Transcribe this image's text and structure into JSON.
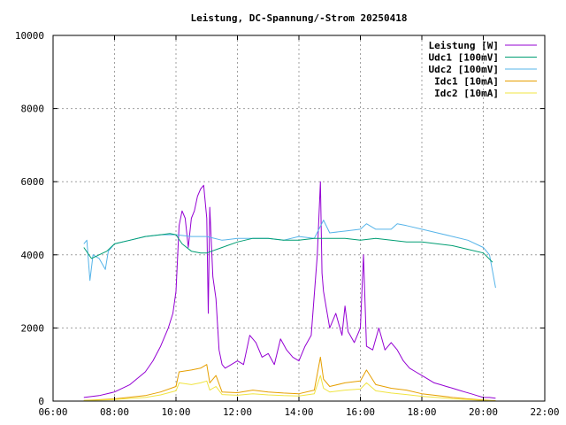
{
  "chart_data": {
    "type": "line",
    "title": "Leistung, DC-Spannung/-Strom 20250418",
    "xlabel": "",
    "ylabel": "",
    "x_unit": "hour",
    "xlim": [
      6,
      22
    ],
    "ylim": [
      0,
      10000
    ],
    "x_ticks": [
      6,
      8,
      10,
      12,
      14,
      16,
      18,
      20,
      22
    ],
    "x_tick_labels": [
      "06:00",
      "08:00",
      "10:00",
      "12:00",
      "14:00",
      "16:00",
      "18:00",
      "20:00",
      "22:00"
    ],
    "y_ticks": [
      0,
      2000,
      4000,
      6000,
      8000,
      10000
    ],
    "y_tick_labels": [
      "0",
      "2000",
      "4000",
      "6000",
      "8000",
      "10000"
    ],
    "grid": true,
    "legend_position": "top-right",
    "series": [
      {
        "name": "Leistung [W]",
        "color": "#9400d3",
        "x": [
          7.0,
          7.5,
          8.0,
          8.5,
          9.0,
          9.25,
          9.5,
          9.75,
          9.9,
          10.0,
          10.1,
          10.2,
          10.3,
          10.4,
          10.5,
          10.6,
          10.7,
          10.8,
          10.9,
          11.0,
          11.05,
          11.1,
          11.2,
          11.3,
          11.4,
          11.5,
          11.6,
          11.8,
          12.0,
          12.2,
          12.4,
          12.5,
          12.6,
          12.8,
          13.0,
          13.2,
          13.4,
          13.6,
          13.8,
          14.0,
          14.2,
          14.4,
          14.6,
          14.7,
          14.75,
          14.8,
          14.9,
          15.0,
          15.2,
          15.4,
          15.5,
          15.6,
          15.8,
          16.0,
          16.1,
          16.2,
          16.4,
          16.6,
          16.8,
          17.0,
          17.2,
          17.4,
          17.6,
          17.8,
          18.0,
          18.2,
          18.4,
          18.6,
          18.8,
          19.0,
          19.2,
          19.4,
          19.6,
          19.8,
          20.0,
          20.2,
          20.4
        ],
        "values": [
          100,
          150,
          250,
          450,
          800,
          1100,
          1500,
          2000,
          2400,
          3000,
          4800,
          5200,
          5000,
          4200,
          5000,
          5200,
          5600,
          5800,
          5900,
          5000,
          2400,
          5300,
          3400,
          2800,
          1400,
          1000,
          900,
          1000,
          1100,
          1000,
          1800,
          1700,
          1600,
          1200,
          1300,
          1000,
          1700,
          1400,
          1200,
          1100,
          1500,
          1800,
          4000,
          6000,
          3500,
          3000,
          2500,
          2000,
          2400,
          1800,
          2600,
          1900,
          1600,
          2000,
          4000,
          1500,
          1400,
          2000,
          1400,
          1600,
          1400,
          1100,
          900,
          800,
          700,
          600,
          500,
          450,
          400,
          350,
          300,
          250,
          200,
          150,
          100,
          100,
          80
        ]
      },
      {
        "name": "Udc1 [100mV]",
        "color": "#009e73",
        "x": [
          7.0,
          7.25,
          7.5,
          7.75,
          8.0,
          8.5,
          9.0,
          9.5,
          9.8,
          10.0,
          10.2,
          10.5,
          10.8,
          11.0,
          11.5,
          12.0,
          12.5,
          13.0,
          13.5,
          14.0,
          14.5,
          15.0,
          15.5,
          16.0,
          16.5,
          17.0,
          17.5,
          18.0,
          18.5,
          19.0,
          19.5,
          20.0,
          20.3
        ],
        "values": [
          4200,
          3900,
          4000,
          4100,
          4300,
          4400,
          4500,
          4550,
          4580,
          4550,
          4300,
          4100,
          4050,
          4050,
          4200,
          4350,
          4450,
          4450,
          4400,
          4400,
          4450,
          4450,
          4450,
          4400,
          4450,
          4400,
          4350,
          4350,
          4300,
          4250,
          4150,
          4050,
          3800
        ]
      },
      {
        "name": "Udc2 [100mV]",
        "color": "#56b4e9",
        "x": [
          7.0,
          7.1,
          7.2,
          7.3,
          7.5,
          7.7,
          7.8,
          8.0,
          8.5,
          9.0,
          9.5,
          10.0,
          10.5,
          11.0,
          11.5,
          12.0,
          12.5,
          13.0,
          13.5,
          14.0,
          14.5,
          14.8,
          15.0,
          15.5,
          16.0,
          16.2,
          16.5,
          17.0,
          17.2,
          17.5,
          18.0,
          18.5,
          19.0,
          19.5,
          20.0,
          20.2,
          20.4
        ],
        "values": [
          4300,
          4400,
          3300,
          4000,
          3900,
          3600,
          4100,
          4300,
          4400,
          4500,
          4550,
          4550,
          4500,
          4500,
          4400,
          4450,
          4450,
          4450,
          4400,
          4500,
          4450,
          4950,
          4600,
          4650,
          4700,
          4850,
          4700,
          4700,
          4850,
          4800,
          4700,
          4600,
          4500,
          4400,
          4200,
          4000,
          3100
        ]
      },
      {
        "name": "Idc1 [10mA]",
        "color": "#e69f00",
        "x": [
          7.0,
          8.0,
          9.0,
          9.5,
          10.0,
          10.1,
          10.5,
          10.8,
          11.0,
          11.1,
          11.3,
          11.5,
          12.0,
          12.5,
          13.0,
          13.5,
          14.0,
          14.5,
          14.7,
          14.8,
          15.0,
          15.5,
          16.0,
          16.2,
          16.5,
          17.0,
          17.5,
          18.0,
          18.5,
          19.0,
          19.5,
          20.0,
          20.4
        ],
        "values": [
          20,
          60,
          150,
          250,
          400,
          800,
          850,
          900,
          1000,
          500,
          700,
          250,
          230,
          300,
          250,
          220,
          200,
          300,
          1200,
          600,
          400,
          500,
          550,
          850,
          450,
          350,
          300,
          200,
          150,
          100,
          60,
          30,
          10
        ]
      },
      {
        "name": "Idc2 [10mA]",
        "color": "#f0e442",
        "x": [
          7.0,
          8.0,
          9.0,
          9.5,
          10.0,
          10.1,
          10.5,
          10.8,
          11.0,
          11.1,
          11.3,
          11.5,
          12.0,
          12.5,
          13.0,
          13.5,
          14.0,
          14.5,
          14.7,
          14.8,
          15.0,
          15.5,
          16.0,
          16.2,
          16.5,
          17.0,
          17.5,
          18.0,
          18.5,
          19.0,
          19.5,
          20.0,
          20.4
        ],
        "values": [
          15,
          40,
          100,
          170,
          280,
          500,
          450,
          500,
          550,
          300,
          400,
          180,
          160,
          200,
          170,
          150,
          140,
          200,
          700,
          350,
          250,
          300,
          330,
          500,
          280,
          220,
          180,
          130,
          100,
          60,
          40,
          20,
          8
        ]
      }
    ]
  }
}
